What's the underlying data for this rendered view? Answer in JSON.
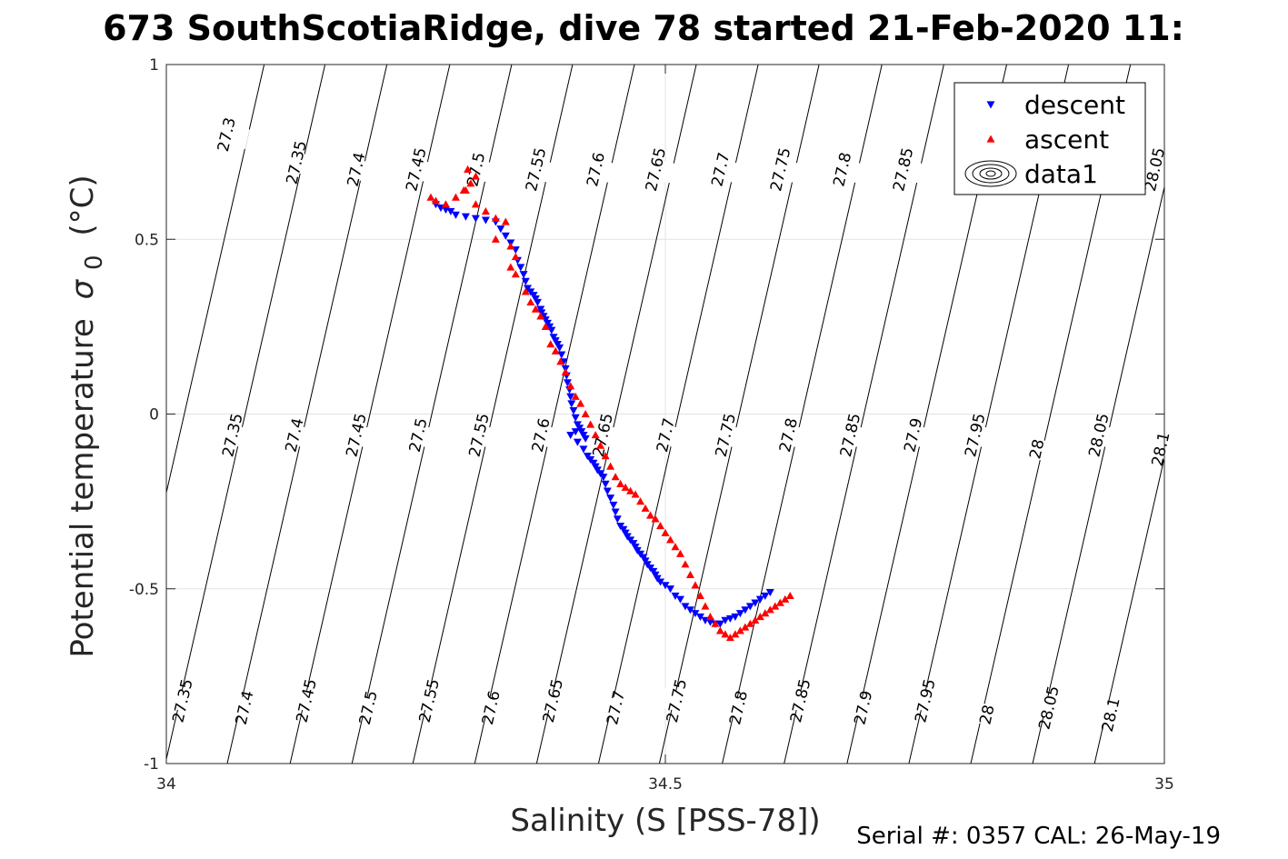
{
  "figure": {
    "title": "673 SouthScotiaRidge, dive 78 started 21-Feb-2020 11:",
    "footer": "Serial #: 0357  CAL: 26-May-19"
  },
  "chart_data": {
    "type": "scatter",
    "title": "673 SouthScotiaRidge, dive 78 started 21-Feb-2020 11:",
    "xlabel": "Salinity (S [PSS-78])",
    "ylabel_main": "Potential temperature",
    "ylabel_symbol": "σ",
    "ylabel_subscript": "0",
    "ylabel_unit": "(°C)",
    "xlim": [
      34,
      35
    ],
    "ylim": [
      -1,
      1
    ],
    "xticks": [
      "34",
      "34.5",
      "35"
    ],
    "xtick_values": [
      34,
      34.5,
      35
    ],
    "yticks": [
      "-1",
      "-0.5",
      "0",
      "0.5",
      "1"
    ],
    "ytick_values": [
      -1,
      -0.5,
      0,
      0.5,
      1
    ],
    "grid": true,
    "legend": {
      "placement": "top-right",
      "entries": [
        {
          "name": "descent",
          "marker": "triangle-down",
          "color": "#0000ff"
        },
        {
          "name": "ascent",
          "marker": "triangle-up",
          "color": "#ff0000"
        },
        {
          "name": "data1",
          "marker": "contour",
          "color": "#000000"
        }
      ]
    },
    "contours": {
      "levels": [
        27.3,
        27.35,
        27.4,
        27.45,
        27.5,
        27.55,
        27.6,
        27.65,
        27.7,
        27.75,
        27.8,
        27.85,
        27.9,
        27.95,
        28,
        28.05,
        28.1
      ],
      "base_salinity_at_0C": [
        34.018,
        34.079,
        34.141,
        34.204,
        34.266,
        34.327,
        34.389,
        34.451,
        34.513,
        34.574,
        34.637,
        34.699,
        34.762,
        34.824,
        34.886,
        34.948,
        35.01
      ],
      "slope_salinity_per_C": 0.08,
      "labels_top": [
        {
          "text": "27.3",
          "s": 34.06,
          "t": 0.8
        },
        {
          "text": "27.35",
          "s": 34.13,
          "t": 0.72
        },
        {
          "text": "27.4",
          "s": 34.19,
          "t": 0.7
        },
        {
          "text": "27.45",
          "s": 34.25,
          "t": 0.7
        },
        {
          "text": "27.5",
          "s": 34.31,
          "t": 0.7
        },
        {
          "text": "27.55",
          "s": 34.37,
          "t": 0.7
        },
        {
          "text": "27.6",
          "s": 34.43,
          "t": 0.7
        },
        {
          "text": "27.65",
          "s": 34.49,
          "t": 0.7
        },
        {
          "text": "27.7",
          "s": 34.555,
          "t": 0.7
        },
        {
          "text": "27.75",
          "s": 34.615,
          "t": 0.7
        },
        {
          "text": "27.8",
          "s": 34.677,
          "t": 0.7
        },
        {
          "text": "27.85",
          "s": 34.738,
          "t": 0.7
        },
        {
          "text": "27.9",
          "s": 34.8,
          "t": 0.7
        },
        {
          "text": "27.95",
          "s": 34.862,
          "t": 0.7
        },
        {
          "text": "28",
          "s": 34.924,
          "t": 0.7
        },
        {
          "text": "28.05",
          "s": 34.99,
          "t": 0.7
        }
      ],
      "labels_mid": [
        {
          "text": "27.35",
          "s": 34.066,
          "t": -0.06
        },
        {
          "text": "27.4",
          "s": 34.128,
          "t": -0.06
        },
        {
          "text": "27.45",
          "s": 34.19,
          "t": -0.06
        },
        {
          "text": "27.5",
          "s": 34.252,
          "t": -0.06
        },
        {
          "text": "27.55",
          "s": 34.313,
          "t": -0.06
        },
        {
          "text": "27.6",
          "s": 34.375,
          "t": -0.06
        },
        {
          "text": "27.65",
          "s": 34.437,
          "t": -0.06
        },
        {
          "text": "27.7",
          "s": 34.5,
          "t": -0.06
        },
        {
          "text": "27.75",
          "s": 34.56,
          "t": -0.06
        },
        {
          "text": "27.8",
          "s": 34.623,
          "t": -0.06
        },
        {
          "text": "27.85",
          "s": 34.685,
          "t": -0.06
        },
        {
          "text": "27.9",
          "s": 34.748,
          "t": -0.06
        },
        {
          "text": "27.95",
          "s": 34.81,
          "t": -0.06
        },
        {
          "text": "28",
          "s": 34.872,
          "t": -0.1
        },
        {
          "text": "28.05",
          "s": 34.934,
          "t": -0.06
        },
        {
          "text": "28.1",
          "s": 34.996,
          "t": -0.1
        }
      ],
      "labels_bottom": [
        {
          "text": "27.35",
          "s": 34.016,
          "t": -0.82
        },
        {
          "text": "27.4",
          "s": 34.078,
          "t": -0.84
        },
        {
          "text": "27.45",
          "s": 34.14,
          "t": -0.82
        },
        {
          "text": "27.5",
          "s": 34.202,
          "t": -0.84
        },
        {
          "text": "27.55",
          "s": 34.263,
          "t": -0.82
        },
        {
          "text": "27.6",
          "s": 34.325,
          "t": -0.84
        },
        {
          "text": "27.65",
          "s": 34.387,
          "t": -0.82
        },
        {
          "text": "27.7",
          "s": 34.45,
          "t": -0.84
        },
        {
          "text": "27.75",
          "s": 34.511,
          "t": -0.82
        },
        {
          "text": "27.8",
          "s": 34.573,
          "t": -0.84
        },
        {
          "text": "27.85",
          "s": 34.635,
          "t": -0.82
        },
        {
          "text": "27.9",
          "s": 34.698,
          "t": -0.84
        },
        {
          "text": "27.95",
          "s": 34.76,
          "t": -0.82
        },
        {
          "text": "28",
          "s": 34.822,
          "t": -0.86
        },
        {
          "text": "28.05",
          "s": 34.884,
          "t": -0.84
        },
        {
          "text": "28.1",
          "s": 34.946,
          "t": -0.86
        }
      ]
    },
    "series": [
      {
        "name": "descent",
        "color": "#0000ff",
        "marker": "triangle-down",
        "x": [
          34.27,
          34.275,
          34.28,
          34.285,
          34.29,
          34.3,
          34.31,
          34.32,
          34.33,
          34.335,
          34.34,
          34.345,
          34.35,
          34.352,
          34.355,
          34.358,
          34.36,
          34.362,
          34.365,
          34.368,
          34.37,
          34.372,
          34.375,
          34.376,
          34.378,
          34.38,
          34.382,
          34.384,
          34.386,
          34.388,
          34.39,
          34.392,
          34.394,
          34.396,
          34.398,
          34.4,
          34.401,
          34.402,
          34.404,
          34.405,
          34.406,
          34.408,
          34.41,
          34.412,
          34.414,
          34.416,
          34.418,
          34.42,
          34.41,
          34.405,
          34.412,
          34.418,
          34.422,
          34.425,
          34.428,
          34.43,
          34.432,
          34.435,
          34.438,
          34.44,
          34.442,
          34.445,
          34.448,
          34.45,
          34.452,
          34.455,
          34.458,
          34.46,
          34.462,
          34.465,
          34.468,
          34.47,
          34.472,
          34.475,
          34.478,
          34.48,
          34.482,
          34.485,
          34.488,
          34.49,
          34.492,
          34.495,
          34.5,
          34.505,
          34.51,
          34.515,
          34.52,
          34.525,
          34.53,
          34.535,
          34.54,
          34.545,
          34.55,
          34.555,
          34.56,
          34.565,
          34.57,
          34.575,
          34.58,
          34.585,
          34.59,
          34.595,
          34.6,
          34.605
        ],
        "y": [
          0.6,
          0.59,
          0.585,
          0.58,
          0.57,
          0.565,
          0.56,
          0.555,
          0.55,
          0.53,
          0.51,
          0.49,
          0.47,
          0.44,
          0.42,
          0.4,
          0.38,
          0.36,
          0.35,
          0.34,
          0.33,
          0.32,
          0.3,
          0.29,
          0.28,
          0.27,
          0.26,
          0.25,
          0.24,
          0.22,
          0.21,
          0.2,
          0.19,
          0.17,
          0.15,
          0.13,
          0.11,
          0.09,
          0.07,
          0.05,
          0.03,
          0.01,
          -0.01,
          -0.03,
          -0.04,
          -0.05,
          -0.06,
          -0.07,
          -0.05,
          -0.06,
          -0.08,
          -0.1,
          -0.12,
          -0.13,
          -0.14,
          -0.15,
          -0.16,
          -0.17,
          -0.18,
          -0.2,
          -0.22,
          -0.24,
          -0.26,
          -0.28,
          -0.3,
          -0.32,
          -0.33,
          -0.34,
          -0.35,
          -0.36,
          -0.37,
          -0.38,
          -0.39,
          -0.4,
          -0.41,
          -0.42,
          -0.43,
          -0.44,
          -0.45,
          -0.46,
          -0.47,
          -0.48,
          -0.49,
          -0.5,
          -0.52,
          -0.53,
          -0.55,
          -0.56,
          -0.57,
          -0.58,
          -0.59,
          -0.595,
          -0.6,
          -0.6,
          -0.59,
          -0.585,
          -0.58,
          -0.57,
          -0.56,
          -0.55,
          -0.54,
          -0.53,
          -0.52,
          -0.51
        ]
      },
      {
        "name": "ascent",
        "color": "#ff0000",
        "marker": "triangle-up",
        "x": [
          34.265,
          34.27,
          34.28,
          34.29,
          34.3,
          34.305,
          34.31,
          34.302,
          34.298,
          34.31,
          34.32,
          34.33,
          34.34,
          34.33,
          34.345,
          34.35,
          34.345,
          34.35,
          34.36,
          34.365,
          34.37,
          34.375,
          34.38,
          34.385,
          34.39,
          34.395,
          34.4,
          34.405,
          34.41,
          34.415,
          34.42,
          34.425,
          34.43,
          34.435,
          34.44,
          34.445,
          34.45,
          34.455,
          34.46,
          34.465,
          34.47,
          34.475,
          34.48,
          34.485,
          34.49,
          34.495,
          34.5,
          34.505,
          34.51,
          34.515,
          34.52,
          34.525,
          34.53,
          34.535,
          34.54,
          34.545,
          34.55,
          34.555,
          34.56,
          34.565,
          34.57,
          34.575,
          34.58,
          34.585,
          34.59,
          34.595,
          34.6,
          34.605,
          34.61,
          34.615,
          34.62,
          34.625
        ],
        "y": [
          0.62,
          0.61,
          0.6,
          0.62,
          0.64,
          0.66,
          0.68,
          0.7,
          0.64,
          0.6,
          0.58,
          0.56,
          0.55,
          0.5,
          0.48,
          0.45,
          0.42,
          0.4,
          0.35,
          0.32,
          0.3,
          0.28,
          0.25,
          0.2,
          0.18,
          0.15,
          0.12,
          0.08,
          0.05,
          0.03,
          0.0,
          -0.03,
          -0.06,
          -0.09,
          -0.12,
          -0.15,
          -0.18,
          -0.2,
          -0.21,
          -0.22,
          -0.23,
          -0.25,
          -0.27,
          -0.29,
          -0.3,
          -0.32,
          -0.34,
          -0.36,
          -0.38,
          -0.4,
          -0.43,
          -0.46,
          -0.49,
          -0.52,
          -0.55,
          -0.58,
          -0.6,
          -0.62,
          -0.63,
          -0.64,
          -0.63,
          -0.62,
          -0.61,
          -0.6,
          -0.59,
          -0.58,
          -0.57,
          -0.56,
          -0.55,
          -0.54,
          -0.53,
          -0.52
        ]
      }
    ]
  }
}
